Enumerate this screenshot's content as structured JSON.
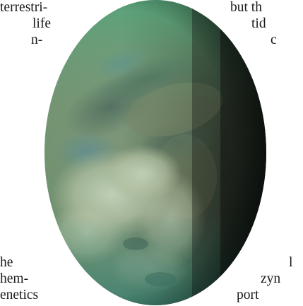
{
  "left_text": {
    "line1": "terrestri-",
    "line2": "life",
    "line3": "n-",
    "line4": "he",
    "line5": "hem-",
    "line6": "enetics"
  },
  "right_text": {
    "line1": "but th",
    "line2": "tid",
    "line3": "c",
    "line4": "l",
    "line5": "zyn",
    "line6": "port"
  },
  "colors": {
    "text": "#1a1a1a",
    "background": "#ffffff"
  }
}
